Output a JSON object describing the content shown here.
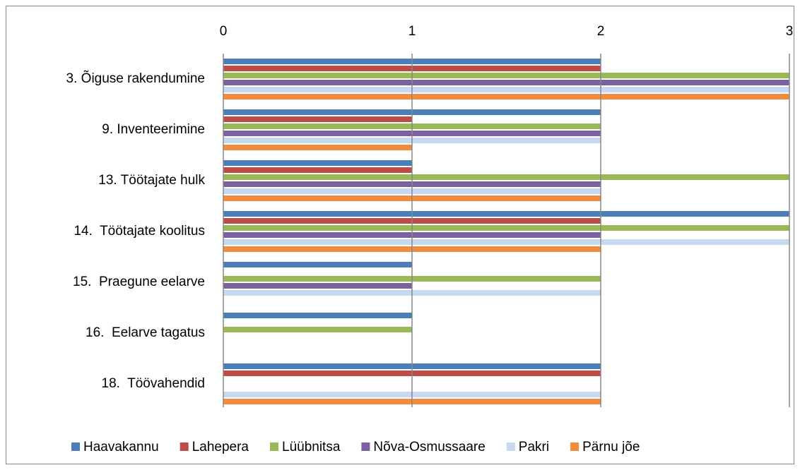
{
  "chart_data": {
    "type": "hbar",
    "categories": [
      "3. Õiguse rakendumine",
      "9. Inventeerimine",
      "13. Töötajate hulk",
      "14.  Töötajate koolitus",
      "15.  Praegune eelarve",
      "16.  Eelarve tagatus",
      "18.  Töövahendid"
    ],
    "series": [
      {
        "name": "Haavakannu",
        "color": "#4a7ebb",
        "values": [
          2,
          2,
          1,
          3,
          1,
          1,
          2
        ]
      },
      {
        "name": "Lahepera",
        "color": "#be4b48",
        "values": [
          2,
          1,
          1,
          2,
          0,
          0,
          2
        ]
      },
      {
        "name": "Lüübnitsa",
        "color": "#98b954",
        "values": [
          3,
          2,
          3,
          3,
          2,
          1,
          0
        ]
      },
      {
        "name": "Nõva-Osmussaare",
        "color": "#7d60a0",
        "values": [
          3,
          2,
          2,
          2,
          1,
          0,
          0
        ]
      },
      {
        "name": "Pakri",
        "color": "#c6d9f1",
        "values": [
          3,
          2,
          2,
          3,
          2,
          0,
          2
        ]
      },
      {
        "name": "Pärnu jõe",
        "color": "#f08c3c",
        "values": [
          3,
          1,
          2,
          2,
          0,
          0,
          2
        ]
      }
    ],
    "xlim": [
      0,
      3
    ],
    "xticks": [
      0,
      1,
      2,
      3
    ],
    "grid": true,
    "legend": "bottom"
  }
}
